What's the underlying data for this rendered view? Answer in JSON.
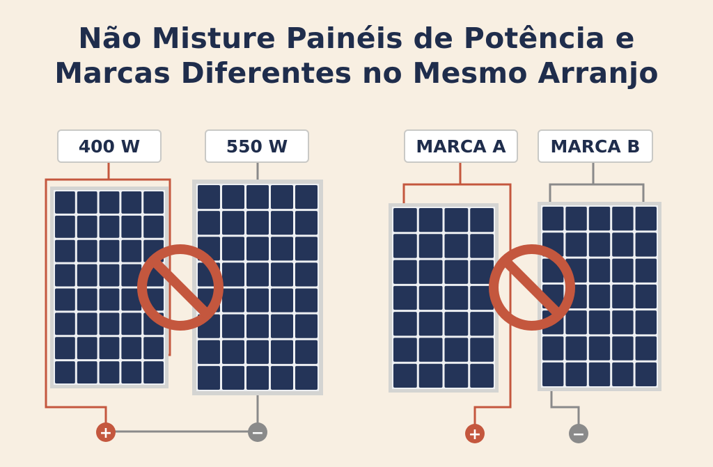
{
  "title": {
    "line1": "Não Misture Painéis de Potência e",
    "line2": "Marcas Diferentes no Mesmo Arranjo"
  },
  "power_comparison": {
    "left_label": "400 W",
    "right_label": "550 W",
    "positive_terminal": "+",
    "negative_terminal": "−"
  },
  "brand_comparison": {
    "left_label": "MARCA A",
    "right_label": "MARCA B",
    "positive_terminal": "+",
    "negative_terminal": "−"
  },
  "colors": {
    "background": "#f8efe2",
    "title": "#1f2d4c",
    "panel_cell": "#243458",
    "panel_frame": "#d4d4d2",
    "positive_wire": "#c4573e",
    "negative_wire": "#8a8a8a",
    "prohibition": "#c4573e"
  },
  "icons": [
    "prohibition-icon",
    "plus-icon",
    "minus-icon"
  ]
}
